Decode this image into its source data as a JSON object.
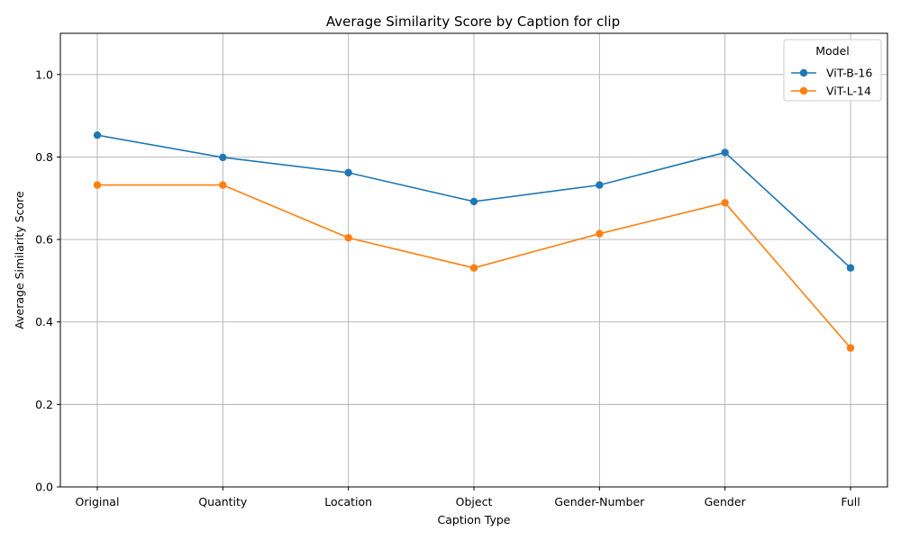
{
  "chart_data": {
    "type": "line",
    "title": "Average Similarity Score by Caption for clip",
    "xlabel": "Caption Type",
    "ylabel": "Average Similarity Score",
    "categories": [
      "Original",
      "Quantity",
      "Location",
      "Object",
      "Gender-Number",
      "Gender",
      "Full"
    ],
    "ylim": [
      0,
      1.1
    ],
    "yticks": [
      "0.0",
      "0.2",
      "0.4",
      "0.6",
      "0.8",
      "1.0"
    ],
    "grid": true,
    "legend": {
      "title": "Model",
      "placement": "top-right"
    },
    "series": [
      {
        "name": "ViT-B-16",
        "color": "#1f77b4",
        "marker": "circle",
        "values": [
          0.853,
          0.799,
          0.762,
          0.692,
          0.732,
          0.811,
          0.531
        ]
      },
      {
        "name": "ViT-L-14",
        "color": "#ff7f0e",
        "marker": "circle",
        "values": [
          0.732,
          0.732,
          0.604,
          0.531,
          0.614,
          0.689,
          0.337
        ]
      }
    ]
  }
}
